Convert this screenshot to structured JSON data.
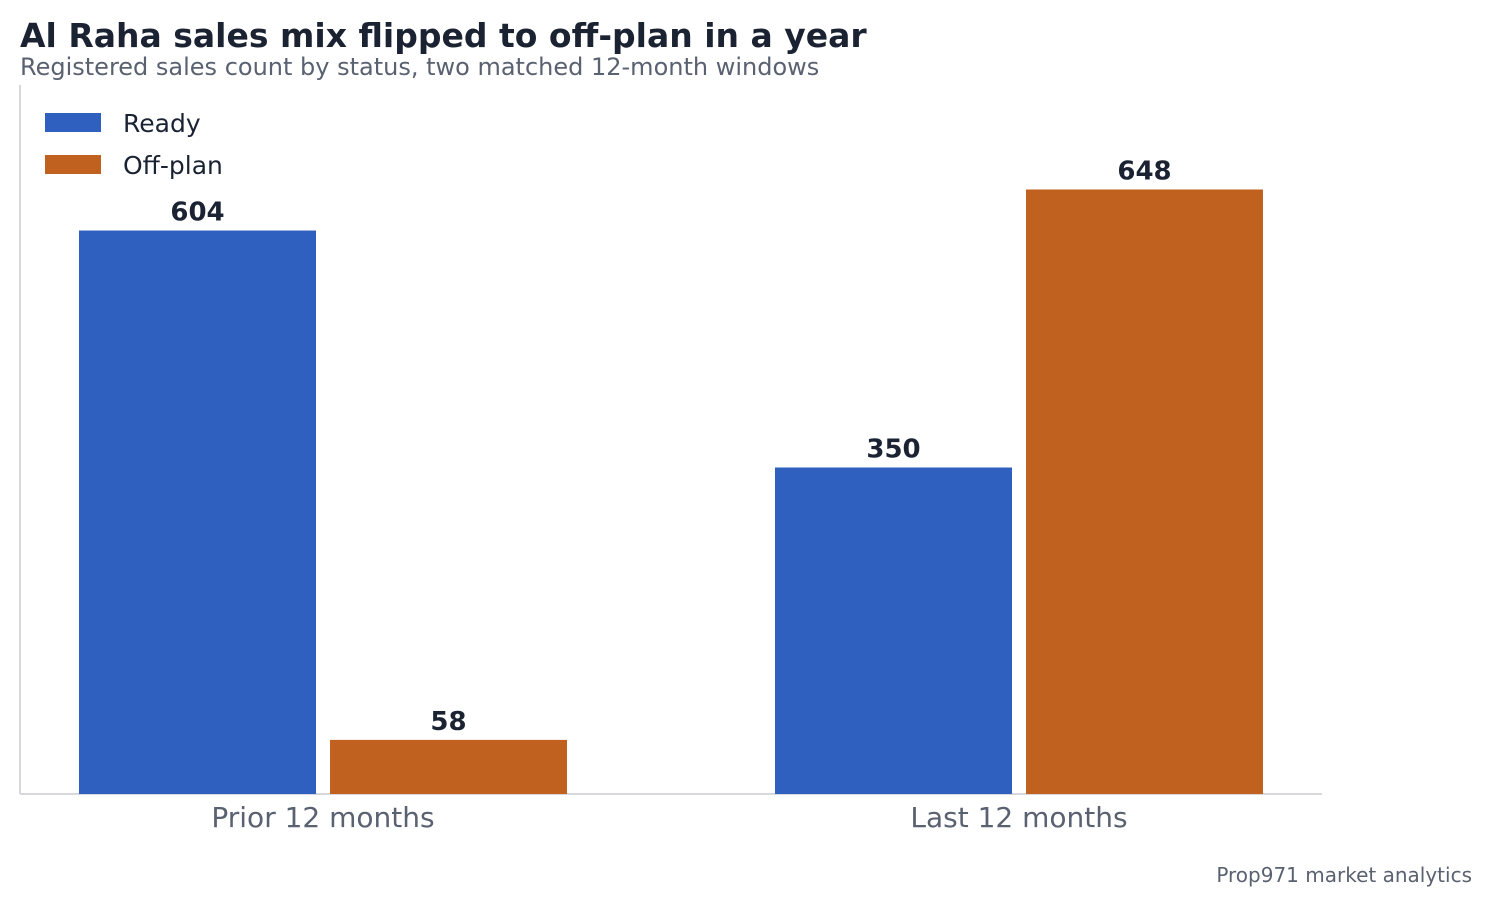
{
  "chart_data": {
    "type": "bar",
    "title": "Al Raha sales mix flipped to off-plan in a year",
    "subtitle": "Registered sales count by status, two matched 12-month windows",
    "categories": [
      "Prior 12 months",
      "Last 12 months"
    ],
    "series": [
      {
        "name": "Ready",
        "values": [
          604,
          350
        ],
        "color": "#3060bf"
      },
      {
        "name": "Off-plan",
        "values": [
          58,
          648
        ],
        "color": "#c1611f"
      }
    ],
    "xlabel": "",
    "ylabel": "",
    "ylim": [
      0,
      760
    ],
    "grid": false,
    "legend_position": "top-left",
    "source": "Prop971 market analytics"
  }
}
